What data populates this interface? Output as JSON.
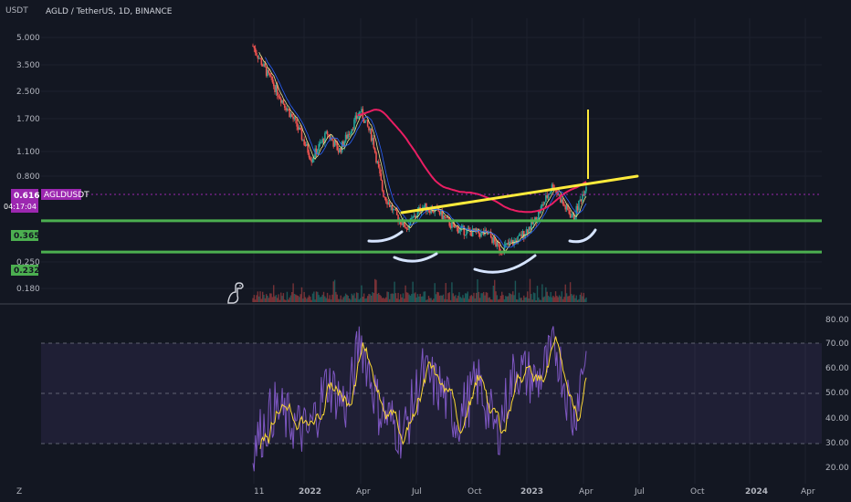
{
  "header": {
    "currency_label": "USDT",
    "symbol_title": "AGLD / TetherUS, 1D, BINANCE"
  },
  "price_axis": {
    "scale": "log",
    "ticks": [
      "5.000",
      "3.500",
      "2.500",
      "1.700",
      "1.100",
      "0.800",
      "0.250",
      "0.180"
    ]
  },
  "price_tag": {
    "symbol": "AGLDUSDT",
    "price": "0.616",
    "countdown": "04:17:04",
    "color": "#9c27b0"
  },
  "levels": [
    {
      "label": "0.365",
      "value": 0.365,
      "color": "#4caf50"
    },
    {
      "label": "0.232",
      "value": 0.232,
      "color": "#4caf50"
    }
  ],
  "rsi_axis": {
    "ticks": [
      "80.00",
      "70.00",
      "60.00",
      "50.00",
      "40.00",
      "30.00",
      "20.00"
    ]
  },
  "time_axis": {
    "labels": [
      "11",
      "2022",
      "Apr",
      "Jul",
      "Oct",
      "2023",
      "Apr",
      "Jul",
      "Oct",
      "2024",
      "Apr"
    ]
  },
  "footer": {
    "scale_label": "Z"
  },
  "colors": {
    "background": "#131722",
    "grid": "#1e222d",
    "up_candle": "#26a69a",
    "down_candle": "#ef5350",
    "ma_fast": "#f0e68c",
    "ma_slow": "#2962ff",
    "ma_long": "#e91e63",
    "trendline": "#ffeb3b",
    "pattern_arc": "#d6e4ff",
    "rsi": "#7e57c2",
    "rsi_ma": "#fdd835",
    "rsi_band": "#7e57c2"
  },
  "chart_data": [
    {
      "type": "candlestick",
      "title": "AGLD / TetherUS, 1D, BINANCE",
      "scale": "log",
      "ylim": [
        0.16,
        6.2
      ],
      "x_range": [
        "2021-10-11",
        "2024-04-30"
      ],
      "last_price": 0.616,
      "horizontal_levels": [
        0.365,
        0.232
      ],
      "path_description_points": [
        [
          "2021-10-11",
          4.6
        ],
        [
          "2021-11-05",
          3.0
        ],
        [
          "2021-12-01",
          2.0
        ],
        [
          "2021-12-20",
          1.5
        ],
        [
          "2022-01-15",
          0.9
        ],
        [
          "2022-02-10",
          1.3
        ],
        [
          "2022-03-01",
          1.0
        ],
        [
          "2022-04-05",
          1.8
        ],
        [
          "2022-04-25",
          1.2
        ],
        [
          "2022-05-12",
          0.55
        ],
        [
          "2022-06-01",
          0.4
        ],
        [
          "2022-06-20",
          0.33
        ],
        [
          "2022-07-15",
          0.45
        ],
        [
          "2022-08-10",
          0.42
        ],
        [
          "2022-09-05",
          0.33
        ],
        [
          "2022-10-01",
          0.31
        ],
        [
          "2022-11-01",
          0.3
        ],
        [
          "2022-11-20",
          0.24
        ],
        [
          "2022-12-20",
          0.28
        ],
        [
          "2023-01-15",
          0.36
        ],
        [
          "2023-02-15",
          0.62
        ],
        [
          "2023-03-05",
          0.45
        ],
        [
          "2023-03-20",
          0.38
        ],
        [
          "2023-04-10",
          0.616
        ]
      ]
    },
    {
      "type": "line",
      "title": "RSI",
      "ylim": [
        18,
        82
      ],
      "bands": [
        30,
        50,
        70
      ],
      "path_description_points": [
        [
          "2021-10-11",
          30
        ],
        [
          "2021-11-15",
          45
        ],
        [
          "2021-12-10",
          40
        ],
        [
          "2022-01-10",
          35
        ],
        [
          "2022-02-10",
          55
        ],
        [
          "2022-03-15",
          45
        ],
        [
          "2022-04-05",
          72
        ],
        [
          "2022-05-05",
          45
        ],
        [
          "2022-06-15",
          35
        ],
        [
          "2022-07-15",
          58
        ],
        [
          "2022-08-15",
          52
        ],
        [
          "2022-09-10",
          40
        ],
        [
          "2022-10-15",
          55
        ],
        [
          "2022-11-15",
          35
        ],
        [
          "2022-12-15",
          60
        ],
        [
          "2023-01-20",
          55
        ],
        [
          "2023-02-20",
          68
        ],
        [
          "2023-03-20",
          40
        ],
        [
          "2023-04-10",
          68
        ]
      ]
    }
  ]
}
